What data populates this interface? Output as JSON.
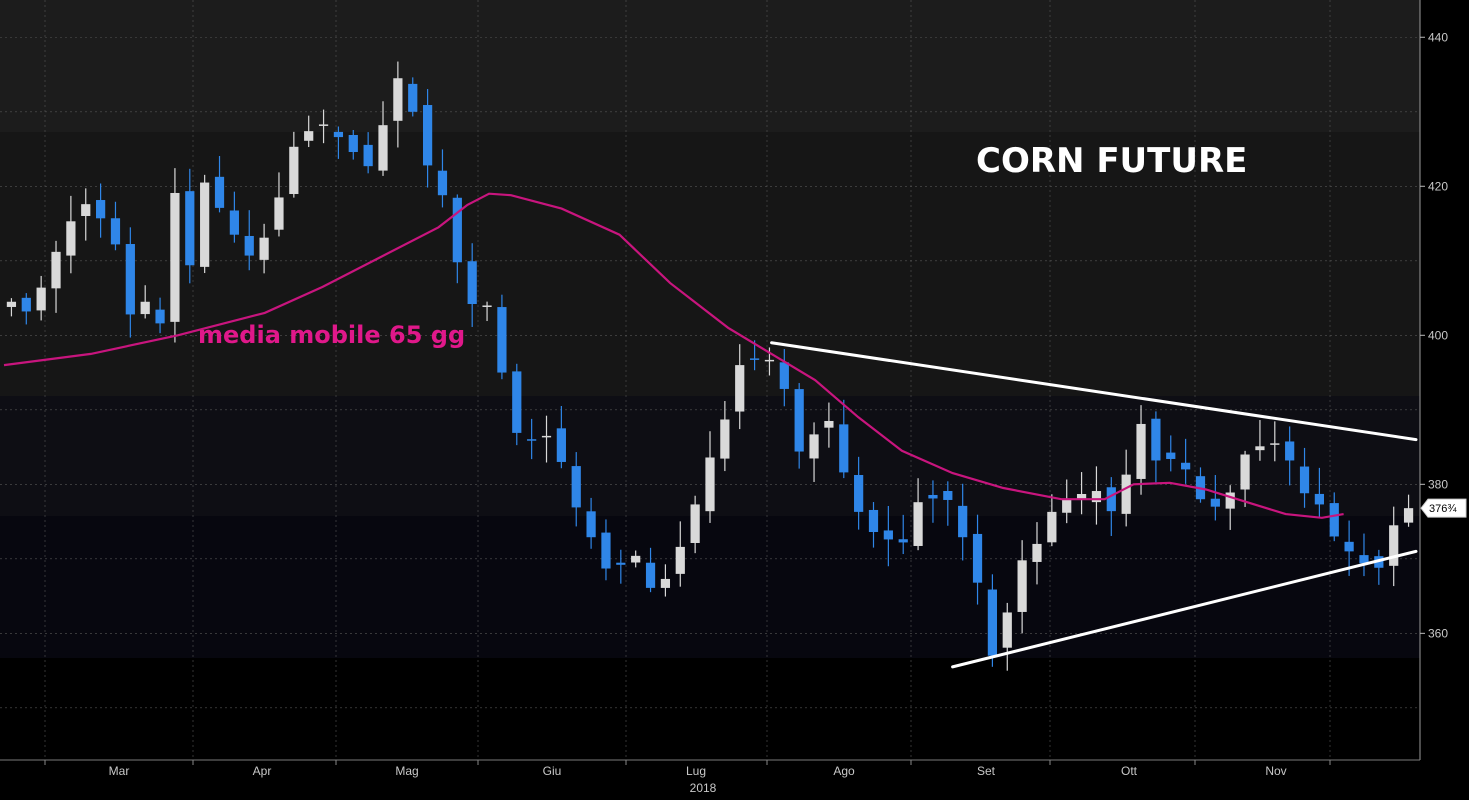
{
  "chart_data": {
    "type": "candlestick",
    "title": "CORN FUTURE",
    "annotation": "media mobile 65 gg",
    "year_label": "2018",
    "last_price_label": "376¾",
    "ylim": [
      343,
      445
    ],
    "y_ticks": [
      360,
      380,
      400,
      420,
      440
    ],
    "x_ticks": [
      "Mar",
      "Apr",
      "Mag",
      "Giu",
      "Lug",
      "Ago",
      "Set",
      "Ott",
      "Nov"
    ],
    "grid": true,
    "colors": {
      "up_candle": "#d9d9d9",
      "down_candle": "#2f86e8",
      "moving_average": "#c8157e",
      "trendline": "#ffffff",
      "title": "#ffffff",
      "annotation": "#e0188a"
    },
    "close_path": [
      404.5,
      403.2,
      406.4,
      411.2,
      415.3,
      417.6,
      415.7,
      412.2,
      402.8,
      404.5,
      401.6,
      419.1,
      409.4,
      420.5,
      417.1,
      413.5,
      410.7,
      413.1,
      418.5,
      425.3,
      427.4,
      428.3,
      426.6,
      424.6,
      422.7,
      428.2,
      434.5,
      430.0,
      422.8,
      418.8,
      409.8,
      404.2,
      404.0,
      395.0,
      386.9,
      386.0,
      386.5,
      383.0,
      376.9,
      372.9,
      368.7,
      369.2,
      370.4,
      366.1,
      367.3,
      371.6,
      377.3,
      383.6,
      388.7,
      396.0,
      396.7,
      396.7,
      392.8,
      384.4,
      386.7,
      388.5,
      381.6,
      376.3,
      373.6,
      372.6,
      372.2,
      377.6,
      378.1,
      377.9,
      372.9,
      366.8,
      357.0,
      362.8,
      369.8,
      372.0,
      376.3,
      378.1,
      378.7,
      379.1,
      376.4,
      381.3,
      388.1,
      383.2,
      383.4,
      382.0,
      378.0,
      377.0,
      378.9,
      384.0,
      385.1,
      385.5,
      383.2,
      378.8,
      377.3,
      373.0,
      371.0,
      369.4,
      368.8,
      374.5,
      376.8
    ],
    "moving_average": [
      [
        0,
        396.0
      ],
      [
        12,
        397.5
      ],
      [
        24,
        400.0
      ],
      [
        36,
        403.0
      ],
      [
        44,
        406.5
      ],
      [
        52,
        410.5
      ],
      [
        60,
        414.5
      ],
      [
        64,
        417.5
      ],
      [
        67,
        419.0
      ],
      [
        70,
        418.8
      ],
      [
        77,
        417.0
      ],
      [
        85,
        413.5
      ],
      [
        92,
        407.0
      ],
      [
        100,
        401.0
      ],
      [
        106,
        397.5
      ],
      [
        112,
        394.0
      ],
      [
        118,
        389.0
      ],
      [
        124,
        384.5
      ],
      [
        131,
        381.5
      ],
      [
        138,
        379.5
      ],
      [
        146,
        378.0
      ],
      [
        152,
        378.0
      ],
      [
        156,
        380.0
      ],
      [
        161,
        380.2
      ],
      [
        166,
        379.3
      ],
      [
        171,
        377.8
      ],
      [
        177,
        376.0
      ],
      [
        182,
        375.5
      ],
      [
        185,
        376.0
      ]
    ],
    "trendlines": [
      {
        "from": [
          106,
          399.0
        ],
        "to": [
          195,
          386.0
        ]
      },
      {
        "from": [
          131,
          355.5
        ],
        "to": [
          195,
          371.0
        ]
      }
    ]
  }
}
